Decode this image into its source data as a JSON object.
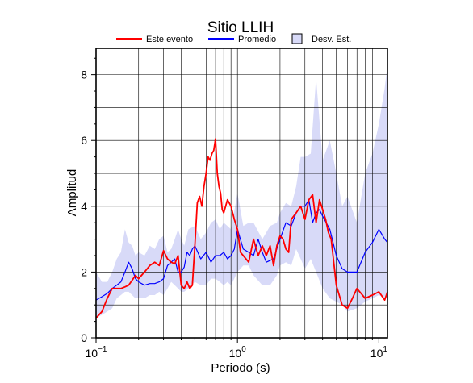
{
  "chart_data": {
    "type": "line",
    "title": "Sitio LLIH",
    "xlabel": "Periodo (s)",
    "ylabel": "Amplitud",
    "xscale": "log",
    "xlim": [
      0.1,
      11.5
    ],
    "ylim": [
      0,
      8.8
    ],
    "grid": true,
    "legend_position": "top",
    "x_ticks": [
      {
        "value": 0.1,
        "base": "10",
        "exp": "−1"
      },
      {
        "value": 1,
        "base": "10",
        "exp": "0"
      },
      {
        "value": 10,
        "base": "10",
        "exp": "1"
      }
    ],
    "y_ticks": [
      0,
      2,
      4,
      6,
      8
    ],
    "legend": [
      {
        "label": "Este evento",
        "kind": "line",
        "color": "#ff0000"
      },
      {
        "label": "Promedio",
        "kind": "line",
        "color": "#0000ff"
      },
      {
        "label": "Desv. Est.",
        "kind": "fill",
        "color": "#d8daf8"
      }
    ],
    "series": [
      {
        "name": "Este evento",
        "color": "#ff0000",
        "x": [
          0.1,
          0.11,
          0.12,
          0.13,
          0.14,
          0.15,
          0.16,
          0.17,
          0.18,
          0.19,
          0.2,
          0.22,
          0.24,
          0.26,
          0.28,
          0.3,
          0.32,
          0.34,
          0.36,
          0.38,
          0.4,
          0.42,
          0.44,
          0.46,
          0.48,
          0.5,
          0.52,
          0.54,
          0.56,
          0.58,
          0.6,
          0.62,
          0.64,
          0.66,
          0.68,
          0.7,
          0.72,
          0.74,
          0.76,
          0.78,
          0.8,
          0.85,
          0.9,
          0.95,
          1.0,
          1.05,
          1.1,
          1.2,
          1.3,
          1.4,
          1.5,
          1.6,
          1.7,
          1.8,
          1.9,
          2.0,
          2.1,
          2.2,
          2.3,
          2.4,
          2.6,
          2.8,
          3.0,
          3.2,
          3.4,
          3.6,
          3.8,
          4.0,
          4.2,
          4.4,
          4.6,
          5.0,
          5.5,
          6.0,
          6.5,
          7.0,
          8.0,
          9.0,
          10.0,
          11.0,
          11.5
        ],
        "y": [
          0.6,
          0.8,
          1.2,
          1.5,
          1.5,
          1.5,
          1.55,
          1.6,
          1.75,
          1.9,
          1.8,
          2.0,
          2.2,
          2.3,
          2.2,
          2.65,
          2.4,
          2.3,
          2.25,
          2.5,
          1.6,
          1.5,
          1.7,
          1.5,
          1.6,
          2.8,
          4.1,
          4.3,
          4.0,
          4.6,
          5.0,
          5.5,
          5.4,
          5.6,
          5.7,
          6.05,
          5.0,
          4.6,
          4.4,
          3.9,
          3.8,
          4.2,
          4.0,
          3.6,
          3.3,
          2.6,
          2.5,
          2.3,
          3.0,
          2.5,
          2.8,
          2.5,
          2.8,
          2.2,
          2.8,
          3.1,
          3.0,
          2.7,
          2.6,
          3.6,
          3.8,
          4.0,
          3.6,
          4.2,
          4.35,
          3.5,
          4.2,
          3.9,
          3.6,
          3.2,
          3.0,
          1.6,
          1.0,
          0.9,
          1.2,
          1.5,
          1.2,
          1.3,
          1.4,
          1.15,
          1.4
        ]
      },
      {
        "name": "Promedio",
        "color": "#0000ff",
        "x": [
          0.1,
          0.11,
          0.12,
          0.13,
          0.14,
          0.15,
          0.16,
          0.17,
          0.18,
          0.19,
          0.2,
          0.22,
          0.24,
          0.26,
          0.28,
          0.3,
          0.32,
          0.34,
          0.36,
          0.38,
          0.4,
          0.42,
          0.44,
          0.46,
          0.48,
          0.5,
          0.55,
          0.6,
          0.65,
          0.7,
          0.75,
          0.8,
          0.85,
          0.9,
          0.95,
          1.0,
          1.1,
          1.2,
          1.3,
          1.4,
          1.5,
          1.6,
          1.8,
          2.0,
          2.2,
          2.4,
          2.6,
          2.8,
          3.0,
          3.2,
          3.4,
          3.6,
          3.8,
          4.0,
          4.5,
          5.0,
          5.5,
          6.0,
          7.0,
          8.0,
          9.0,
          10.0,
          11.0,
          11.5
        ],
        "y": [
          1.15,
          1.25,
          1.35,
          1.5,
          1.6,
          1.7,
          2.0,
          2.3,
          2.1,
          1.8,
          1.7,
          1.6,
          1.65,
          1.65,
          1.7,
          1.8,
          2.2,
          2.3,
          2.4,
          2.0,
          2.0,
          2.15,
          2.6,
          2.5,
          2.7,
          2.8,
          2.4,
          2.6,
          2.3,
          2.5,
          2.5,
          2.6,
          2.4,
          2.5,
          2.7,
          3.3,
          2.7,
          2.6,
          2.5,
          3.0,
          2.6,
          2.3,
          2.4,
          3.0,
          3.5,
          3.4,
          3.8,
          4.0,
          4.0,
          4.2,
          3.5,
          3.8,
          3.9,
          3.7,
          3.3,
          2.5,
          2.1,
          2.0,
          2.0,
          2.6,
          2.9,
          3.3,
          3.0,
          2.9
        ]
      }
    ],
    "band": {
      "name": "Desv. Est.",
      "color": "#d8daf8",
      "x": [
        0.1,
        0.11,
        0.12,
        0.13,
        0.14,
        0.15,
        0.16,
        0.17,
        0.18,
        0.19,
        0.2,
        0.22,
        0.24,
        0.26,
        0.28,
        0.3,
        0.32,
        0.34,
        0.36,
        0.38,
        0.4,
        0.42,
        0.45,
        0.5,
        0.55,
        0.6,
        0.65,
        0.7,
        0.75,
        0.8,
        0.85,
        0.9,
        1.0,
        1.1,
        1.2,
        1.3,
        1.5,
        1.7,
        1.9,
        2.0,
        2.2,
        2.4,
        2.6,
        2.8,
        3.0,
        3.3,
        3.6,
        4.0,
        4.5,
        5.0,
        5.5,
        6.0,
        7.0,
        8.0,
        9.0,
        10.0,
        11.0,
        11.5
      ],
      "upper": [
        2.0,
        1.7,
        1.7,
        2.0,
        2.4,
        2.6,
        3.3,
        2.9,
        2.8,
        2.5,
        2.6,
        2.5,
        2.8,
        2.7,
        3.0,
        3.1,
        2.6,
        2.7,
        3.0,
        3.3,
        3.0,
        2.8,
        3.3,
        3.4,
        3.0,
        3.2,
        3.5,
        3.6,
        3.3,
        3.5,
        3.4,
        3.3,
        4.4,
        3.4,
        3.5,
        3.5,
        3.0,
        3.4,
        3.5,
        3.8,
        4.1,
        4.0,
        4.6,
        5.5,
        5.5,
        5.6,
        7.9,
        5.4,
        6.0,
        5.0,
        4.0,
        4.3,
        3.5,
        5.0,
        5.6,
        6.5,
        7.6,
        8.3
      ],
      "lower": [
        0.6,
        0.7,
        0.8,
        0.9,
        1.2,
        1.3,
        1.4,
        1.4,
        1.3,
        1.2,
        1.2,
        1.2,
        1.3,
        1.3,
        1.4,
        1.3,
        1.5,
        1.7,
        1.6,
        1.5,
        1.4,
        1.4,
        1.5,
        1.7,
        1.6,
        1.6,
        1.8,
        1.8,
        1.7,
        1.6,
        1.7,
        1.6,
        2.0,
        2.2,
        2.2,
        1.9,
        1.6,
        1.6,
        1.9,
        2.2,
        2.3,
        2.2,
        2.7,
        2.4,
        2.1,
        2.4,
        2.0,
        1.5,
        1.2,
        1.1,
        1.0,
        0.8,
        0.9,
        1.1,
        1.2,
        1.3,
        1.2,
        1.2
      ]
    }
  }
}
